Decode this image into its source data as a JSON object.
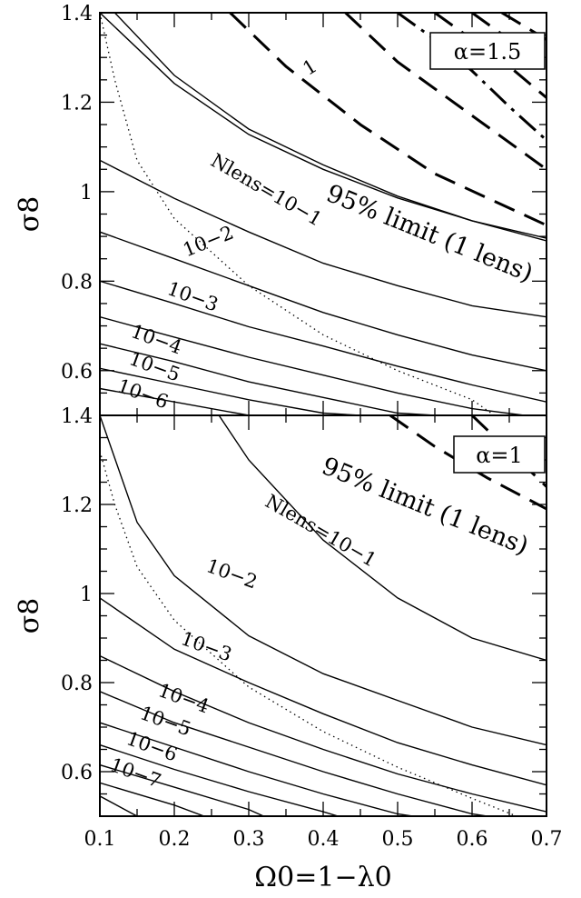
{
  "chart_data": [
    {
      "type": "line",
      "panel": "top",
      "annotation": "α=1.5",
      "xlim": [
        0.1,
        0.7
      ],
      "ylim": [
        0.5,
        1.4
      ],
      "xticks": [
        "0.1",
        "0.2",
        "0.3",
        "0.4",
        "0.5",
        "0.6",
        "0.7"
      ],
      "yticks": [
        "0.6",
        "0.8",
        "1",
        "1.2",
        "1.4"
      ],
      "ylabel": "σ8",
      "contour_labels": [
        "1",
        "Nlens=10−1",
        "10−2",
        "10−3",
        "10−4",
        "10−5",
        "10−6"
      ],
      "limit_label": "95% limit (1 lens)",
      "series": [
        {
          "style": "solid",
          "x": [
            0.1,
            0.2,
            0.3,
            0.4,
            0.5,
            0.6,
            0.7
          ],
          "y": [
            1.4,
            1.242,
            1.128,
            1.05,
            0.986,
            0.935,
            0.896
          ]
        },
        {
          "style": "solid",
          "x": [
            0.12,
            0.2,
            0.3,
            0.4,
            0.5,
            0.6,
            0.7
          ],
          "y": [
            1.4,
            1.26,
            1.14,
            1.06,
            0.99,
            0.935,
            0.89
          ]
        },
        {
          "style": "solid",
          "x": [
            0.1,
            0.2,
            0.3,
            0.4,
            0.5,
            0.6,
            0.7
          ],
          "y": [
            1.07,
            0.985,
            0.91,
            0.84,
            0.79,
            0.745,
            0.72
          ]
        },
        {
          "style": "solid",
          "x": [
            0.1,
            0.2,
            0.3,
            0.4,
            0.5,
            0.6,
            0.7
          ],
          "y": [
            0.91,
            0.85,
            0.79,
            0.73,
            0.68,
            0.635,
            0.6
          ]
        },
        {
          "style": "solid",
          "x": [
            0.1,
            0.2,
            0.3,
            0.4,
            0.5,
            0.6,
            0.7
          ],
          "y": [
            0.8,
            0.75,
            0.698,
            0.655,
            0.61,
            0.568,
            0.53
          ]
        },
        {
          "style": "solid",
          "x": [
            0.1,
            0.2,
            0.3,
            0.4,
            0.5,
            0.6,
            0.67
          ],
          "y": [
            0.72,
            0.675,
            0.63,
            0.59,
            0.55,
            0.515,
            0.5
          ]
        },
        {
          "style": "solid",
          "x": [
            0.1,
            0.2,
            0.3,
            0.4,
            0.5,
            0.55
          ],
          "y": [
            0.66,
            0.62,
            0.575,
            0.54,
            0.505,
            0.5
          ]
        },
        {
          "style": "solid",
          "x": [
            0.1,
            0.2,
            0.3,
            0.4,
            0.45
          ],
          "y": [
            0.605,
            0.57,
            0.535,
            0.505,
            0.5
          ]
        },
        {
          "style": "solid",
          "x": [
            0.1,
            0.2,
            0.3,
            0.35
          ],
          "y": [
            0.56,
            0.53,
            0.5,
            0.5
          ]
        },
        {
          "style": "dotted",
          "x": [
            0.1,
            0.12,
            0.15,
            0.2,
            0.3,
            0.4,
            0.5,
            0.6,
            0.63
          ],
          "y": [
            1.4,
            1.25,
            1.07,
            0.94,
            0.79,
            0.68,
            0.6,
            0.535,
            0.5
          ]
        },
        {
          "style": "dashed",
          "x": [
            0.275,
            0.35,
            0.45,
            0.55,
            0.7
          ],
          "y": [
            1.4,
            1.28,
            1.15,
            1.04,
            0.925
          ]
        },
        {
          "style": "dashed",
          "x": [
            0.43,
            0.5,
            0.6,
            0.7
          ],
          "y": [
            1.4,
            1.29,
            1.17,
            1.05
          ]
        },
        {
          "style": "dashdot",
          "x": [
            0.5,
            0.55,
            0.6,
            0.65,
            0.7
          ],
          "y": [
            1.4,
            1.34,
            1.27,
            1.19,
            1.115
          ]
        },
        {
          "style": "dashed",
          "x": [
            0.55,
            0.6,
            0.65,
            0.7
          ],
          "y": [
            1.4,
            1.34,
            1.28,
            1.21
          ]
        },
        {
          "style": "dashed",
          "x": [
            0.6,
            0.65,
            0.7
          ],
          "y": [
            1.4,
            1.34,
            1.29
          ]
        },
        {
          "style": "dashed",
          "x": [
            0.64,
            0.7
          ],
          "y": [
            1.4,
            1.34
          ]
        }
      ]
    },
    {
      "type": "line",
      "panel": "bottom",
      "annotation": "α=1",
      "xlim": [
        0.1,
        0.7
      ],
      "ylim": [
        0.5,
        1.4
      ],
      "xticks": [
        "0.1",
        "0.2",
        "0.3",
        "0.4",
        "0.5",
        "0.6",
        "0.7"
      ],
      "yticks": [
        "0.6",
        "0.8",
        "1",
        "1.2",
        "1.4"
      ],
      "ylabel": "σ8",
      "xlabel": "Ω0=1−λ0",
      "contour_labels": [
        "Nlens=10−1",
        "10−2",
        "10−3",
        "10−4",
        "10−5",
        "10−6",
        "10−7"
      ],
      "limit_label": "95% limit (1 lens)",
      "series": [
        {
          "style": "solid",
          "x": [
            0.26,
            0.3,
            0.4,
            0.5,
            0.6,
            0.7
          ],
          "y": [
            1.4,
            1.3,
            1.12,
            0.99,
            0.9,
            0.85
          ]
        },
        {
          "style": "solid",
          "x": [
            0.1,
            0.15,
            0.2,
            0.3,
            0.4,
            0.5,
            0.6,
            0.7
          ],
          "y": [
            1.4,
            1.16,
            1.04,
            0.905,
            0.82,
            0.76,
            0.7,
            0.66
          ]
        },
        {
          "style": "solid",
          "x": [
            0.1,
            0.2,
            0.3,
            0.4,
            0.5,
            0.6,
            0.7
          ],
          "y": [
            0.99,
            0.875,
            0.8,
            0.73,
            0.665,
            0.615,
            0.57
          ]
        },
        {
          "style": "solid",
          "x": [
            0.1,
            0.2,
            0.3,
            0.4,
            0.5,
            0.6,
            0.7
          ],
          "y": [
            0.86,
            0.78,
            0.71,
            0.65,
            0.595,
            0.55,
            0.51
          ]
        },
        {
          "style": "solid",
          "x": [
            0.1,
            0.2,
            0.3,
            0.4,
            0.5,
            0.6,
            0.62
          ],
          "y": [
            0.78,
            0.71,
            0.655,
            0.6,
            0.55,
            0.505,
            0.5
          ]
        },
        {
          "style": "solid",
          "x": [
            0.1,
            0.2,
            0.3,
            0.4,
            0.5,
            0.52
          ],
          "y": [
            0.71,
            0.655,
            0.6,
            0.55,
            0.505,
            0.5
          ]
        },
        {
          "style": "solid",
          "x": [
            0.1,
            0.2,
            0.3,
            0.4,
            0.42
          ],
          "y": [
            0.66,
            0.605,
            0.555,
            0.51,
            0.5
          ]
        },
        {
          "style": "solid",
          "x": [
            0.1,
            0.2,
            0.3,
            0.32
          ],
          "y": [
            0.615,
            0.565,
            0.515,
            0.5
          ]
        },
        {
          "style": "solid",
          "x": [
            0.1,
            0.2,
            0.24
          ],
          "y": [
            0.575,
            0.525,
            0.5
          ]
        },
        {
          "style": "solid",
          "x": [
            0.1,
            0.15
          ],
          "y": [
            0.545,
            0.5
          ]
        },
        {
          "style": "dotted",
          "x": [
            0.1,
            0.12,
            0.15,
            0.2,
            0.3,
            0.4,
            0.5,
            0.6,
            0.66
          ],
          "y": [
            1.32,
            1.2,
            1.06,
            0.94,
            0.79,
            0.69,
            0.61,
            0.54,
            0.5
          ]
        },
        {
          "style": "dashed",
          "x": [
            0.49,
            0.55,
            0.62,
            0.7
          ],
          "y": [
            1.4,
            1.33,
            1.26,
            1.19
          ]
        },
        {
          "style": "dashed",
          "x": [
            0.6,
            0.65,
            0.7
          ],
          "y": [
            1.4,
            1.32,
            1.24
          ]
        }
      ]
    }
  ]
}
